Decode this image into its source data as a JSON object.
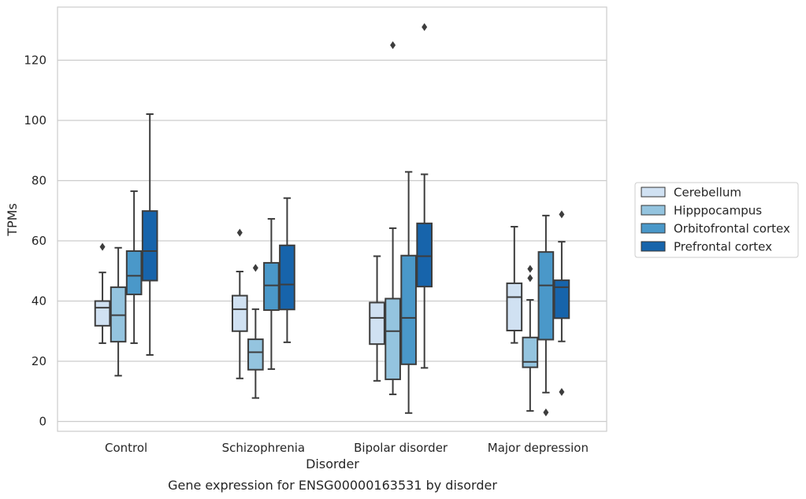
{
  "chart_data": {
    "type": "boxplot",
    "caption": "Gene expression for ENSG00000163531 by disorder",
    "xlabel": "Disorder",
    "ylabel": "TPMs",
    "ylim": [
      -3.5,
      138
    ],
    "yticks": [
      0,
      20,
      40,
      60,
      80,
      100,
      120
    ],
    "grid": "horizontal",
    "legend_position": "right",
    "categories": [
      "Control",
      "Schizophrenia",
      "Bipolar disorder",
      "Major depression"
    ],
    "series": [
      {
        "name": "Cerebellum",
        "color": "#d0e1f2",
        "boxes": [
          {
            "whislo": 26.0,
            "q1": 31.8,
            "med": 37.8,
            "q3": 40.0,
            "whishi": 49.5,
            "fliers": [
              58.0
            ]
          },
          {
            "whislo": 14.3,
            "q1": 30.0,
            "med": 37.3,
            "q3": 41.8,
            "whishi": 49.8,
            "fliers": [
              62.7
            ]
          },
          {
            "whislo": 13.5,
            "q1": 25.7,
            "med": 34.4,
            "q3": 39.5,
            "whishi": 54.9,
            "fliers": []
          },
          {
            "whislo": 26.1,
            "q1": 30.2,
            "med": 41.3,
            "q3": 45.9,
            "whishi": 64.7,
            "fliers": []
          }
        ]
      },
      {
        "name": "Hipppocampus",
        "color": "#94c4df",
        "boxes": [
          {
            "whislo": 15.2,
            "q1": 26.5,
            "med": 35.3,
            "q3": 44.6,
            "whishi": 57.7,
            "fliers": []
          },
          {
            "whislo": 7.8,
            "q1": 17.2,
            "med": 23.0,
            "q3": 27.3,
            "whishi": 37.3,
            "fliers": [
              51.0
            ]
          },
          {
            "whislo": 9.0,
            "q1": 14.0,
            "med": 30.0,
            "q3": 40.8,
            "whishi": 64.2,
            "fliers": [
              125.0
            ]
          },
          {
            "whislo": 3.5,
            "q1": 18.0,
            "med": 19.8,
            "q3": 27.9,
            "whishi": 40.4,
            "fliers": [
              47.6,
              50.7
            ]
          }
        ]
      },
      {
        "name": "Orbitofrontal cortex",
        "color": "#4a98c9",
        "boxes": [
          {
            "whislo": 26.0,
            "q1": 42.2,
            "med": 48.4,
            "q3": 56.6,
            "whishi": 76.5,
            "fliers": []
          },
          {
            "whislo": 17.4,
            "q1": 37.0,
            "med": 45.2,
            "q3": 52.7,
            "whishi": 67.3,
            "fliers": []
          },
          {
            "whislo": 2.8,
            "q1": 19.0,
            "med": 34.4,
            "q3": 55.1,
            "whishi": 82.9,
            "fliers": []
          },
          {
            "whislo": 9.6,
            "q1": 27.2,
            "med": 45.2,
            "q3": 56.3,
            "whishi": 68.4,
            "fliers": [
              3.0
            ]
          }
        ]
      },
      {
        "name": "Prefrontal cortex",
        "color": "#1764ab",
        "boxes": [
          {
            "whislo": 22.1,
            "q1": 46.8,
            "med": 56.6,
            "q3": 69.9,
            "whishi": 102.1,
            "fliers": []
          },
          {
            "whislo": 26.3,
            "q1": 37.2,
            "med": 45.5,
            "q3": 58.5,
            "whishi": 74.2,
            "fliers": []
          },
          {
            "whislo": 17.8,
            "q1": 44.8,
            "med": 54.9,
            "q3": 65.8,
            "whishi": 82.1,
            "fliers": [
              131.0
            ]
          },
          {
            "whislo": 26.6,
            "q1": 34.3,
            "med": 44.6,
            "q3": 46.9,
            "whishi": 59.7,
            "fliers": [
              9.8,
              68.8
            ]
          }
        ]
      }
    ]
  }
}
